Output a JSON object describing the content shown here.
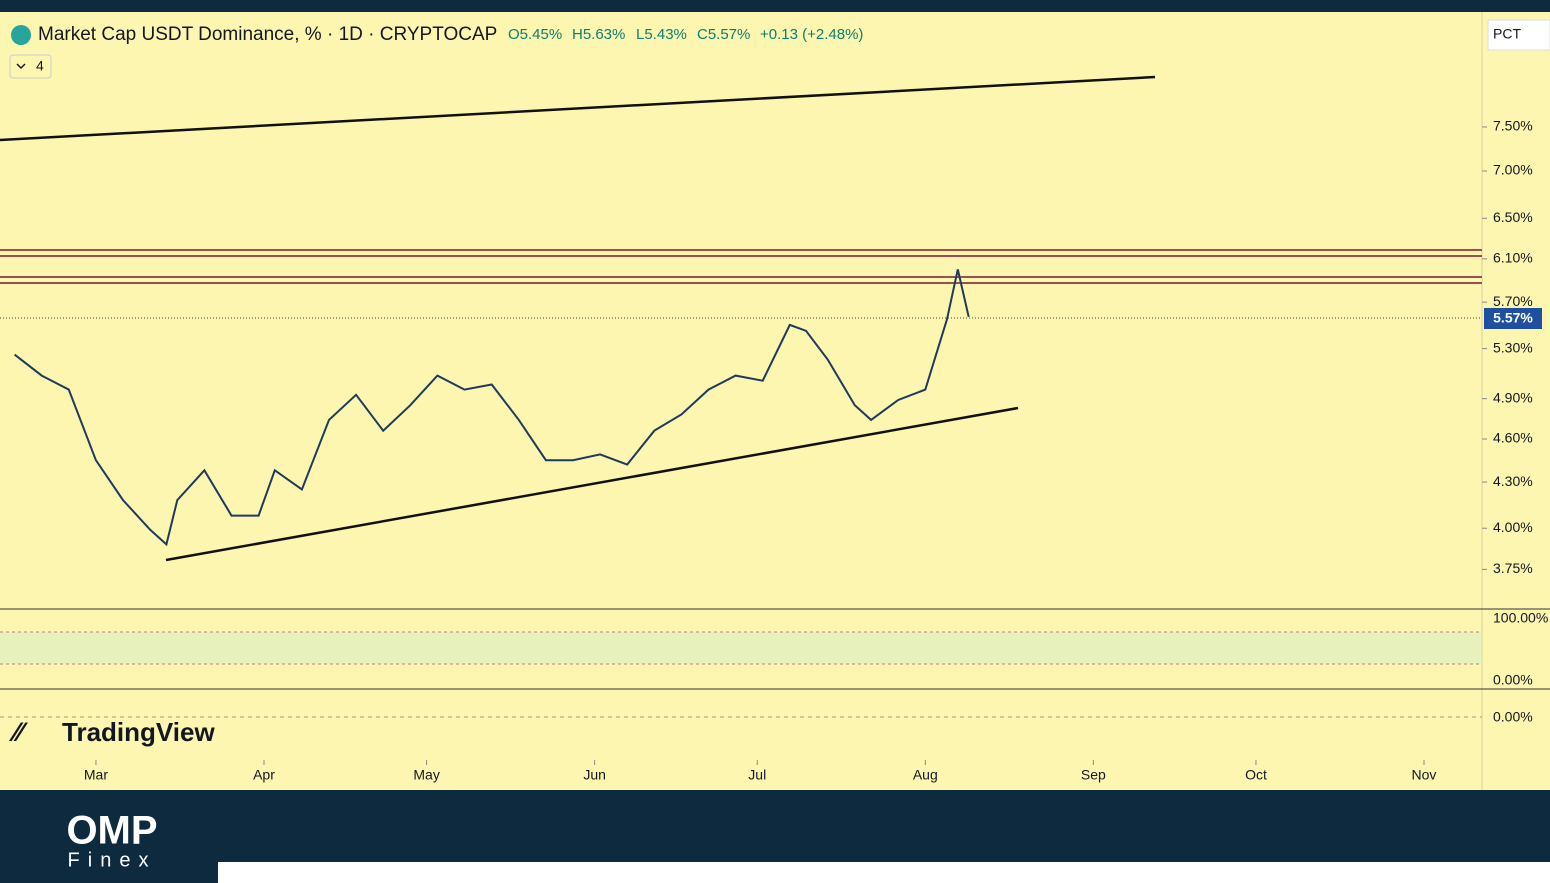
{
  "header": {
    "symbol": "Market Cap USDT Dominance, % · 1D · CRYPTOCAP",
    "open": "O5.45%",
    "high": "H5.63%",
    "low": "L5.43%",
    "close": "C5.57%",
    "change": "+0.13 (+2.48%)",
    "indicators": "4",
    "scale_mode": "PCT"
  },
  "last_price_label": "5.57%",
  "pane_ticks": [
    "100.00%",
    "0.00%",
    "0.00%"
  ],
  "watermark": "TradingView",
  "brand": {
    "name": "OMP",
    "sub": "Finex"
  },
  "chart_data": {
    "type": "line",
    "log": true,
    "color": "#1e3a5f",
    "x": [
      -15,
      -10,
      -5,
      0,
      5,
      10,
      13,
      15,
      20,
      25,
      30,
      33,
      38,
      43,
      48,
      53,
      58,
      63,
      68,
      73,
      78,
      83,
      88,
      93,
      98,
      103,
      108,
      113,
      118,
      123,
      128,
      131,
      135,
      140,
      143,
      148,
      153,
      157,
      159,
      161
    ],
    "values": [
      5.25,
      5.08,
      4.97,
      4.45,
      4.18,
      3.99,
      3.9,
      4.18,
      4.38,
      4.08,
      4.08,
      4.38,
      4.25,
      4.74,
      4.93,
      4.66,
      4.85,
      5.08,
      4.97,
      5.01,
      4.74,
      4.45,
      4.45,
      4.49,
      4.42,
      4.66,
      4.78,
      4.97,
      5.08,
      5.04,
      5.5,
      5.45,
      5.21,
      4.85,
      4.74,
      4.89,
      4.97,
      5.55,
      6.0,
      5.57
    ],
    "xlim": [
      -17.7,
      255.7
    ],
    "xticks": [
      {
        "value": 0,
        "label": "Mar"
      },
      {
        "value": 31,
        "label": "Apr"
      },
      {
        "value": 61,
        "label": "May"
      },
      {
        "value": 92,
        "label": "Jun"
      },
      {
        "value": 122,
        "label": "Jul"
      },
      {
        "value": 153,
        "label": "Aug"
      },
      {
        "value": 184,
        "label": "Sep"
      },
      {
        "value": 214,
        "label": "Oct"
      },
      {
        "value": 245,
        "label": "Nov"
      }
    ],
    "ylim": [
      3.53,
      8.98
    ],
    "yticks": [
      {
        "value": 7.5,
        "label": "7.50%"
      },
      {
        "value": 7,
        "label": "7.00%"
      },
      {
        "value": 6.5,
        "label": "6.50%"
      },
      {
        "value": 6.1,
        "label": "6.10%"
      },
      {
        "value": 5.7,
        "label": "5.70%"
      },
      {
        "value": 5.3,
        "label": "5.30%"
      },
      {
        "value": 4.9,
        "label": "4.90%"
      },
      {
        "value": 4.6,
        "label": "4.60%"
      },
      {
        "value": 4.3,
        "label": "4.30%"
      },
      {
        "value": 4,
        "label": "4.00%"
      },
      {
        "value": 3.75,
        "label": "3.75%"
      }
    ]
  }
}
